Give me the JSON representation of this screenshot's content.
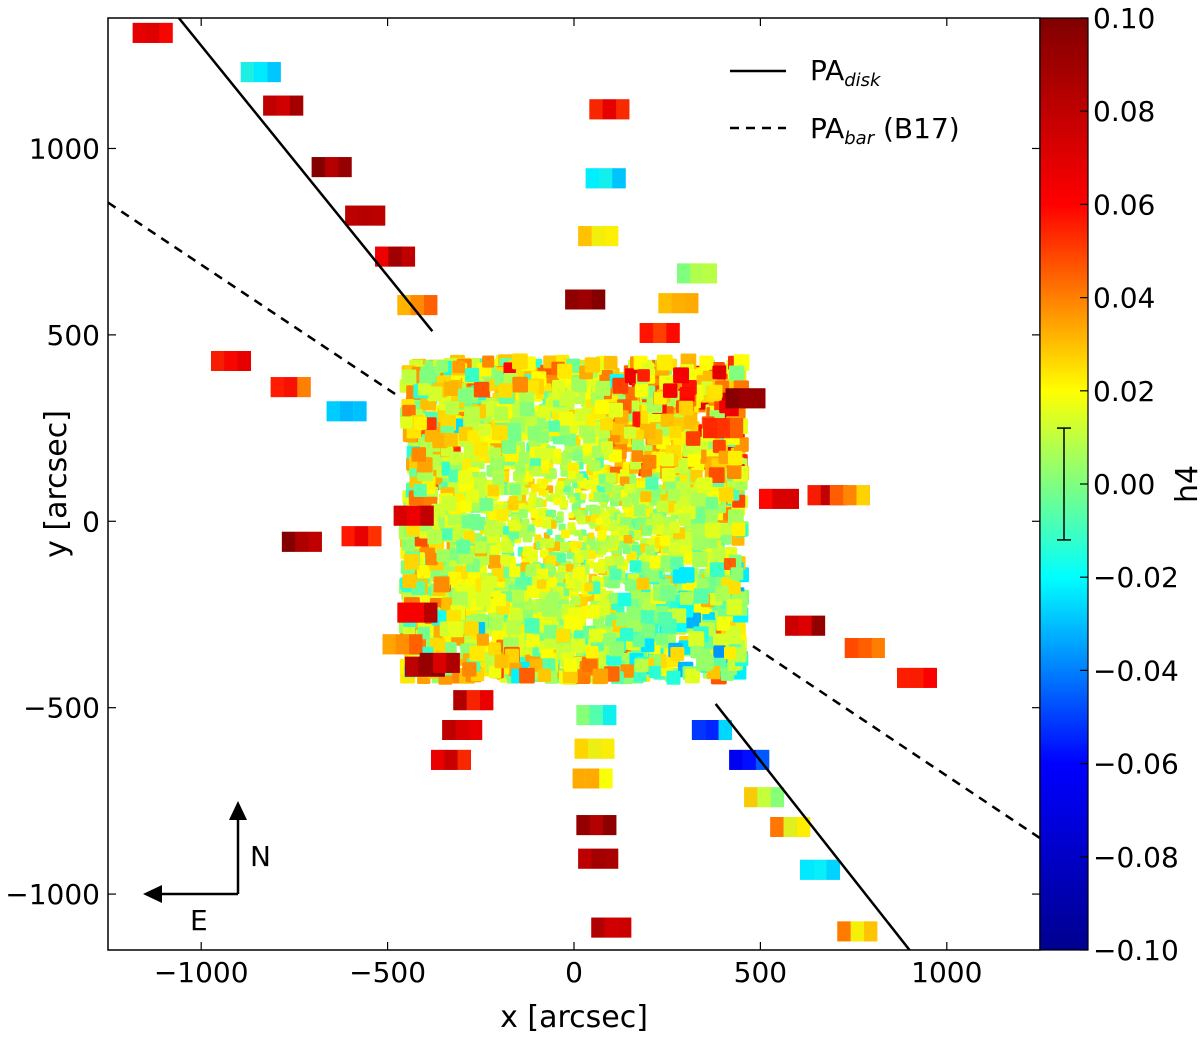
{
  "chart_data": {
    "type": "scatter",
    "title": "",
    "xlabel": "x [arcsec]",
    "ylabel": "y [arcsec]",
    "xlim": [
      -1250,
      1250
    ],
    "ylim": [
      -1150,
      1350
    ],
    "x_ticks": [
      -1000,
      -500,
      0,
      500,
      1000
    ],
    "x_tick_labels": [
      "−1000",
      "−500",
      "0",
      "500",
      "1000"
    ],
    "y_ticks": [
      -1000,
      -500,
      0,
      500,
      1000
    ],
    "y_tick_labels": [
      "−1000",
      "−500",
      "0",
      "500",
      "1000"
    ],
    "colorbar": {
      "label": "h4",
      "min": -0.1,
      "max": 0.1,
      "ticks": [
        0.1,
        0.08,
        0.06,
        0.04,
        0.02,
        0.0,
        -0.02,
        -0.04,
        -0.06,
        -0.08,
        -0.1
      ],
      "tick_labels": [
        "0.10",
        "0.08",
        "0.06",
        "0.04",
        "0.02",
        "0.00",
        "−0.02",
        "−0.04",
        "−0.06",
        "−0.08",
        "−0.10"
      ],
      "error_bar": [
        -0.012,
        0.012
      ],
      "colormap": [
        "#00008f",
        "#0000ff",
        "#00ffff",
        "#ffff00",
        "#ff0000",
        "#800000"
      ]
    },
    "lines": [
      {
        "name": "PA_disk",
        "style": "solid",
        "points": [
          [
            -1060,
            1350
          ],
          [
            -380,
            510
          ]
        ]
      },
      {
        "name": "PA_disk",
        "style": "solid",
        "points": [
          [
            380,
            -490
          ],
          [
            900,
            -1150
          ]
        ]
      },
      {
        "name": "PA_bar (B17)",
        "style": "dashed",
        "points": [
          [
            -1250,
            855
          ],
          [
            -470,
            335
          ]
        ]
      },
      {
        "name": "PA_bar (B17)",
        "style": "dashed",
        "points": [
          [
            480,
            -335
          ],
          [
            1250,
            -850
          ]
        ]
      }
    ],
    "legend": {
      "placement": "top-right",
      "entries": [
        {
          "style": "solid",
          "main": "PA",
          "sub": "disk",
          "suffix": ""
        },
        {
          "style": "dashed",
          "main": "PA",
          "sub": "bar",
          "suffix": " (B17)"
        }
      ]
    },
    "central_field": {
      "x_range": [
        -450,
        450
      ],
      "y_range": [
        -420,
        430
      ]
    },
    "tiles": [
      {
        "x": -1130,
        "y": 1310,
        "h4": 0.07
      },
      {
        "x": -840,
        "y": 1205,
        "h4": -0.03
      },
      {
        "x": -780,
        "y": 1115,
        "h4": 0.085
      },
      {
        "x": -650,
        "y": 950,
        "h4": 0.095
      },
      {
        "x": -560,
        "y": 820,
        "h4": 0.09
      },
      {
        "x": -480,
        "y": 710,
        "h4": 0.08
      },
      {
        "x": -420,
        "y": 580,
        "h4": 0.04
      },
      {
        "x": 95,
        "y": 1105,
        "h4": 0.07
      },
      {
        "x": 85,
        "y": 920,
        "h4": -0.03
      },
      {
        "x": 65,
        "y": 765,
        "h4": 0.03
      },
      {
        "x": 30,
        "y": 595,
        "h4": 0.095
      },
      {
        "x": 330,
        "y": 665,
        "h4": 0.015
      },
      {
        "x": 280,
        "y": 585,
        "h4": 0.03
      },
      {
        "x": 230,
        "y": 505,
        "h4": 0.06
      },
      {
        "x": 460,
        "y": 330,
        "h4": 0.09
      },
      {
        "x": 400,
        "y": 250,
        "h4": 0.06
      },
      {
        "x": -920,
        "y": 430,
        "h4": 0.07
      },
      {
        "x": -760,
        "y": 360,
        "h4": 0.05
      },
      {
        "x": -610,
        "y": 295,
        "h4": -0.02
      },
      {
        "x": -730,
        "y": -55,
        "h4": 0.095
      },
      {
        "x": -570,
        "y": -40,
        "h4": 0.06
      },
      {
        "x": -430,
        "y": 15,
        "h4": 0.07
      },
      {
        "x": 680,
        "y": 70,
        "h4": 0.07
      },
      {
        "x": 740,
        "y": 70,
        "h4": 0.04
      },
      {
        "x": 550,
        "y": 60,
        "h4": 0.06
      },
      {
        "x": -420,
        "y": -245,
        "h4": 0.07
      },
      {
        "x": -460,
        "y": -330,
        "h4": 0.04
      },
      {
        "x": -400,
        "y": -390,
        "h4": 0.095
      },
      {
        "x": -360,
        "y": -380,
        "h4": 0.085
      },
      {
        "x": -270,
        "y": -480,
        "h4": 0.07
      },
      {
        "x": -300,
        "y": -560,
        "h4": 0.08
      },
      {
        "x": -330,
        "y": -640,
        "h4": 0.07
      },
      {
        "x": 60,
        "y": -520,
        "h4": -0.01
      },
      {
        "x": 55,
        "y": -610,
        "h4": 0.03
      },
      {
        "x": 50,
        "y": -690,
        "h4": 0.02
      },
      {
        "x": 60,
        "y": -815,
        "h4": 0.095
      },
      {
        "x": 65,
        "y": -905,
        "h4": 0.09
      },
      {
        "x": 100,
        "y": -1090,
        "h4": 0.07
      },
      {
        "x": 370,
        "y": -560,
        "h4": -0.04
      },
      {
        "x": 470,
        "y": -640,
        "h4": -0.06
      },
      {
        "x": 510,
        "y": -740,
        "h4": 0.015
      },
      {
        "x": 580,
        "y": -820,
        "h4": 0.03
      },
      {
        "x": 660,
        "y": -935,
        "h4": -0.03
      },
      {
        "x": 760,
        "y": -1100,
        "h4": 0.03
      },
      {
        "x": 620,
        "y": -280,
        "h4": 0.08
      },
      {
        "x": 780,
        "y": -340,
        "h4": 0.05
      },
      {
        "x": 920,
        "y": -420,
        "h4": 0.065
      }
    ]
  },
  "compass": {
    "north": "N",
    "east": "E"
  }
}
